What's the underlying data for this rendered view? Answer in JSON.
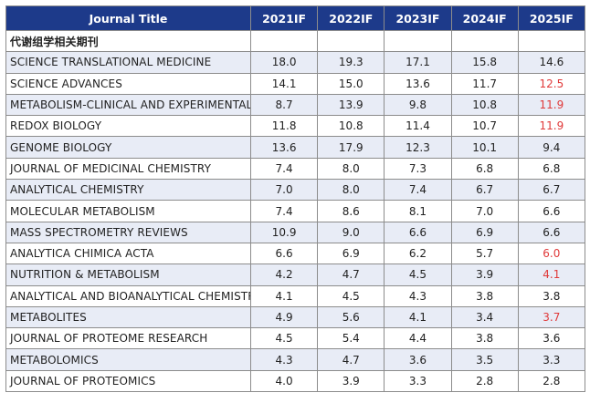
{
  "header": [
    "Journal Title",
    "2021IF",
    "2022IF",
    "2023IF",
    "2024IF",
    "2025IF"
  ],
  "section_label": "代谢组学相关期刊",
  "rows": [
    {
      "title": "SCIENCE TRANSLATIONAL MEDICINE",
      "values": [
        "18.0",
        "19.3",
        "17.1",
        "15.8",
        "14.6"
      ],
      "highlight_2025": false
    },
    {
      "title": "SCIENCE ADVANCES",
      "values": [
        "14.1",
        "15.0",
        "13.6",
        "11.7",
        "12.5"
      ],
      "highlight_2025": true
    },
    {
      "title": "METABOLISM-CLINICAL AND EXPERIMENTAL",
      "values": [
        "8.7",
        "13.9",
        "9.8",
        "10.8",
        "11.9"
      ],
      "highlight_2025": true
    },
    {
      "title": "REDOX BIOLOGY",
      "values": [
        "11.8",
        "10.8",
        "11.4",
        "10.7",
        "11.9"
      ],
      "highlight_2025": true
    },
    {
      "title": "GENOME BIOLOGY",
      "values": [
        "13.6",
        "17.9",
        "12.3",
        "10.1",
        "9.4"
      ],
      "highlight_2025": false
    },
    {
      "title": "JOURNAL OF MEDICINAL CHEMISTRY",
      "values": [
        "7.4",
        "8.0",
        "7.3",
        "6.8",
        "6.8"
      ],
      "highlight_2025": false
    },
    {
      "title": "ANALYTICAL CHEMISTRY",
      "values": [
        "7.0",
        "8.0",
        "7.4",
        "6.7",
        "6.7"
      ],
      "highlight_2025": false
    },
    {
      "title": "MOLECULAR METABOLISM",
      "values": [
        "7.4",
        "8.6",
        "8.1",
        "7.0",
        "6.6"
      ],
      "highlight_2025": false
    },
    {
      "title": "MASS SPECTROMETRY REVIEWS",
      "values": [
        "10.9",
        "9.0",
        "6.6",
        "6.9",
        "6.6"
      ],
      "highlight_2025": false
    },
    {
      "title": "ANALYTICA CHIMICA ACTA",
      "values": [
        "6.6",
        "6.9",
        "6.2",
        "5.7",
        "6.0"
      ],
      "highlight_2025": true
    },
    {
      "title": "NUTRITION & METABOLISM",
      "values": [
        "4.2",
        "4.7",
        "4.5",
        "3.9",
        "4.1"
      ],
      "highlight_2025": true
    },
    {
      "title": "ANALYTICAL AND BIOANALYTICAL CHEMISTRY",
      "values": [
        "4.1",
        "4.5",
        "4.3",
        "3.8",
        "3.8"
      ],
      "highlight_2025": false
    },
    {
      "title": "METABOLITES",
      "values": [
        "4.9",
        "5.6",
        "4.1",
        "3.4",
        "3.7"
      ],
      "highlight_2025": true
    },
    {
      "title": "JOURNAL OF PROTEOME RESEARCH",
      "values": [
        "4.5",
        "5.4",
        "4.4",
        "3.8",
        "3.6"
      ],
      "highlight_2025": false
    },
    {
      "title": "METABOLOMICS",
      "values": [
        "4.3",
        "4.7",
        "3.6",
        "3.5",
        "3.3"
      ],
      "highlight_2025": false
    },
    {
      "title": "JOURNAL OF PROTEOMICS",
      "values": [
        "4.0",
        "3.9",
        "3.3",
        "2.8",
        "2.8"
      ],
      "highlight_2025": false
    }
  ],
  "colors": {
    "header_bg": "#1d3a8a",
    "alt_row": "#e8ecf6",
    "highlight": "#e03a3a"
  }
}
